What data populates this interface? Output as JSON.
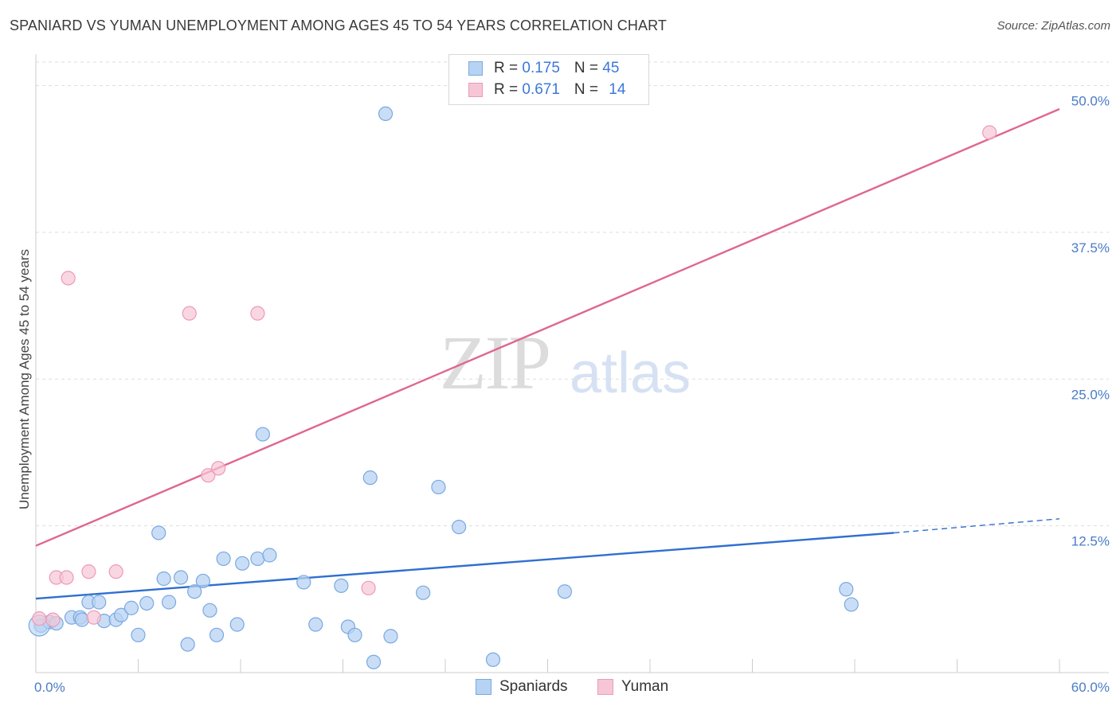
{
  "title": "SPANIARD VS YUMAN UNEMPLOYMENT AMONG AGES 45 TO 54 YEARS CORRELATION CHART",
  "source": "Source: ZipAtlas.com",
  "watermark": {
    "zip": "ZIP",
    "atlas": "atlas"
  },
  "legend": {
    "rows": [
      {
        "r_label": "R = ",
        "r_value": "0.175",
        "n_label": "N = ",
        "n_value": "45"
      },
      {
        "r_label": "R = ",
        "r_value": "0.671",
        "n_label": "N = ",
        "n_value": "14"
      }
    ],
    "bottom": [
      "Spaniards",
      "Yuman"
    ]
  },
  "colors": {
    "spaniards_fill": "#b7d3f3",
    "spaniards_stroke": "#7aa8e0",
    "spaniards_line": "#2f6fcf",
    "yuman_fill": "#f7c6d6",
    "yuman_stroke": "#ee9ab5",
    "yuman_line": "#e0668f",
    "grid": "#dddddd",
    "axis": "#cccccc"
  },
  "chart_data": {
    "type": "scatter",
    "title": "SPANIARD VS YUMAN UNEMPLOYMENT AMONG AGES 45 TO 54 YEARS CORRELATION CHART",
    "xlabel": "",
    "ylabel": "Unemployment Among Ages 45 to 54 years",
    "xlim": [
      0,
      60
    ],
    "ylim": [
      0,
      52
    ],
    "x_tick_labels": [
      "0.0%",
      "60.0%"
    ],
    "y_ticks": [
      12.5,
      25.0,
      37.5,
      50.0
    ],
    "y_tick_labels": [
      "12.5%",
      "25.0%",
      "37.5%",
      "50.0%"
    ],
    "legend_position": "top-center",
    "series": [
      {
        "name": "Spaniards",
        "R": 0.175,
        "N": 45,
        "trend": {
          "x0": 0,
          "y0": 6.3,
          "x1": 50.3,
          "y1": 11.9,
          "dash_to_x": 60,
          "dash_to_y": 13.1
        },
        "points": [
          [
            0.3,
            4.0
          ],
          [
            0.8,
            4.3
          ],
          [
            1.2,
            4.2
          ],
          [
            2.1,
            4.7
          ],
          [
            2.6,
            4.7
          ],
          [
            2.7,
            4.5
          ],
          [
            3.1,
            6.0
          ],
          [
            3.7,
            6.0
          ],
          [
            4.0,
            4.4
          ],
          [
            4.7,
            4.5
          ],
          [
            5.0,
            4.9
          ],
          [
            5.6,
            5.5
          ],
          [
            6.0,
            3.2
          ],
          [
            6.5,
            5.9
          ],
          [
            7.2,
            11.9
          ],
          [
            7.5,
            8.0
          ],
          [
            7.8,
            6.0
          ],
          [
            8.5,
            8.1
          ],
          [
            8.9,
            2.4
          ],
          [
            9.3,
            6.9
          ],
          [
            9.8,
            7.8
          ],
          [
            10.2,
            5.3
          ],
          [
            10.6,
            3.2
          ],
          [
            11.0,
            9.7
          ],
          [
            11.8,
            4.1
          ],
          [
            12.1,
            9.3
          ],
          [
            13.0,
            9.7
          ],
          [
            13.3,
            20.3
          ],
          [
            13.7,
            10.0
          ],
          [
            15.7,
            7.7
          ],
          [
            16.4,
            4.1
          ],
          [
            17.9,
            7.4
          ],
          [
            18.3,
            3.9
          ],
          [
            18.7,
            3.2
          ],
          [
            19.8,
            0.9
          ],
          [
            19.6,
            16.6
          ],
          [
            20.5,
            47.6
          ],
          [
            20.8,
            3.1
          ],
          [
            22.7,
            6.8
          ],
          [
            23.6,
            15.8
          ],
          [
            24.8,
            12.4
          ],
          [
            26.8,
            1.1
          ],
          [
            31.0,
            6.9
          ],
          [
            47.5,
            7.1
          ],
          [
            47.8,
            5.8
          ]
        ]
      },
      {
        "name": "Yuman",
        "R": 0.671,
        "N": 14,
        "trend": {
          "x0": 0,
          "y0": 10.8,
          "x1": 60,
          "y1": 48.0
        },
        "points": [
          [
            0.2,
            4.6
          ],
          [
            1.0,
            4.5
          ],
          [
            1.2,
            8.1
          ],
          [
            1.8,
            8.1
          ],
          [
            1.9,
            33.6
          ],
          [
            3.1,
            8.6
          ],
          [
            3.4,
            4.7
          ],
          [
            4.7,
            8.6
          ],
          [
            9.0,
            30.6
          ],
          [
            10.1,
            16.8
          ],
          [
            10.7,
            17.4
          ],
          [
            13.0,
            30.6
          ],
          [
            19.5,
            7.2
          ],
          [
            55.9,
            46.0
          ]
        ]
      }
    ]
  }
}
